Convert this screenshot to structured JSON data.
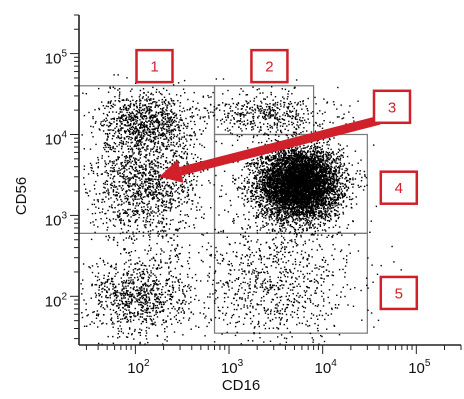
{
  "chart_data": {
    "type": "scatter",
    "xlabel": "CD16",
    "ylabel": "CD56",
    "x_scale": "log",
    "y_scale": "log",
    "xlim": [
      25,
      300000
    ],
    "ylim": [
      25,
      300000
    ],
    "x_ticks": [
      {
        "base": "10",
        "exp": "2",
        "value": 100
      },
      {
        "base": "10",
        "exp": "3",
        "value": 1000
      },
      {
        "base": "10",
        "exp": "4",
        "value": 10000
      },
      {
        "base": "10",
        "exp": "5",
        "value": 100000
      }
    ],
    "y_ticks": [
      {
        "base": "10",
        "exp": "2",
        "value": 100
      },
      {
        "base": "10",
        "exp": "3",
        "value": 1000
      },
      {
        "base": "10",
        "exp": "4",
        "value": 10000
      },
      {
        "base": "10",
        "exp": "5",
        "value": 100000
      }
    ],
    "grid": false,
    "gates": [
      {
        "x": [
          25,
          700
        ],
        "y": [
          600,
          40000
        ]
      },
      {
        "x": [
          700,
          8000
        ],
        "y": [
          10000,
          40000
        ]
      },
      {
        "x": [
          700,
          30000
        ],
        "y": [
          600,
          10000
        ]
      },
      {
        "x": [
          700,
          30000
        ],
        "y": [
          35,
          600
        ]
      }
    ],
    "populations": [
      {
        "x": 5500,
        "y": 2500,
        "spread_x": 0.22,
        "spread_y": 0.22,
        "n": 6500
      },
      {
        "x": 130,
        "y": 15000,
        "spread_x": 0.25,
        "spread_y": 0.18,
        "n": 900
      },
      {
        "x": 130,
        "y": 2500,
        "spread_x": 0.3,
        "spread_y": 0.35,
        "n": 1400
      },
      {
        "x": 110,
        "y": 100,
        "spread_x": 0.28,
        "spread_y": 0.25,
        "n": 900
      },
      {
        "x": 2500,
        "y": 18000,
        "spread_x": 0.35,
        "spread_y": 0.15,
        "n": 500
      },
      {
        "x": 3000,
        "y": 150,
        "spread_x": 0.45,
        "spread_y": 0.4,
        "n": 900
      }
    ],
    "annotations": [
      {
        "label": "1",
        "x": 160,
        "y": 70000
      },
      {
        "label": "2",
        "x": 2700,
        "y": 70000
      },
      {
        "label": "3",
        "x": 55000,
        "y": 22000
      },
      {
        "label": "4",
        "x": 65000,
        "y": 2200
      },
      {
        "label": "5",
        "x": 65000,
        "y": 110
      }
    ],
    "arrow": {
      "from": [
        40000,
        15000
      ],
      "to": [
        180,
        3000
      ]
    },
    "colors": {
      "dots": "#000000",
      "gate": "#7a7a7a",
      "label": "#d0202a",
      "axis": "#222222"
    }
  }
}
